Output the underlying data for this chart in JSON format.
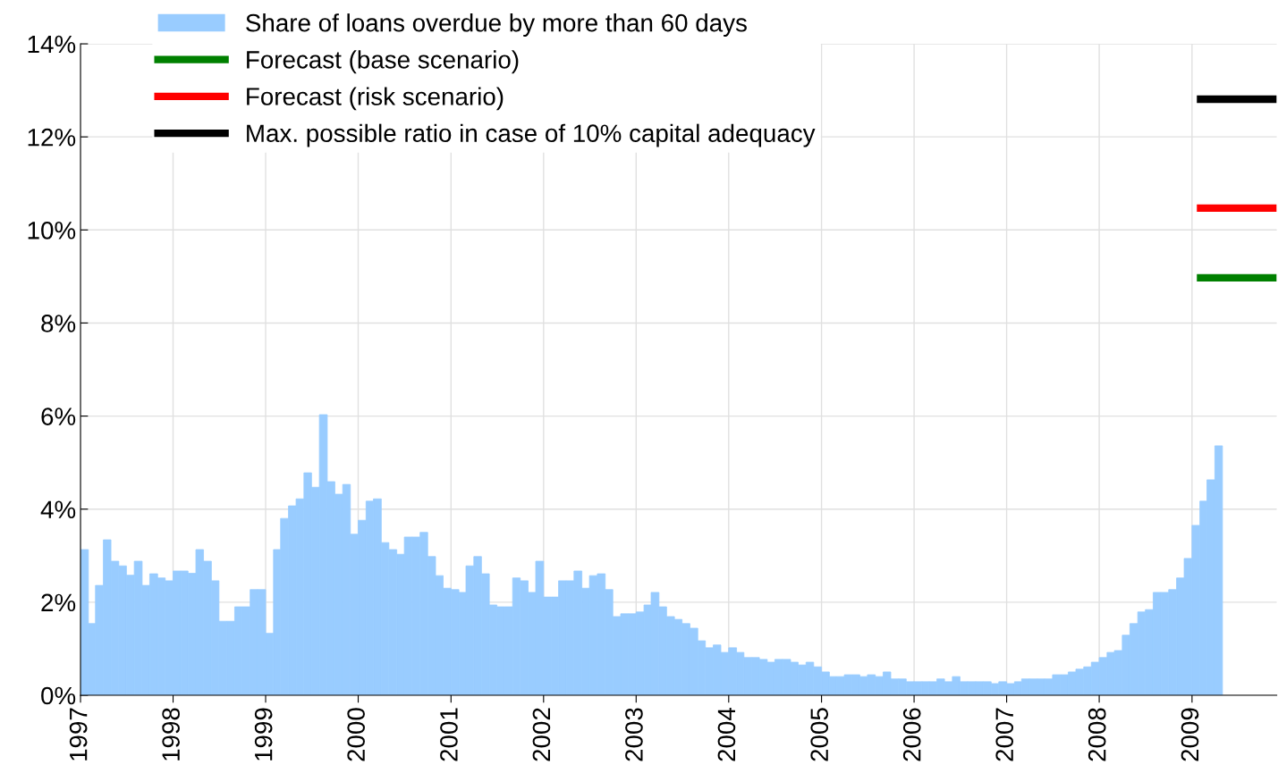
{
  "chart_data": {
    "type": "bar",
    "xlim": [
      "1997-01-01",
      "2009-12-01"
    ],
    "ylim": [
      0,
      14
    ],
    "yticks": [
      {
        "value": 0,
        "label": "0%"
      },
      {
        "value": 2,
        "label": "2%"
      },
      {
        "value": 4,
        "label": "4%"
      },
      {
        "value": 6,
        "label": "6%"
      },
      {
        "value": 8,
        "label": "8%"
      },
      {
        "value": 10,
        "label": "10%"
      },
      {
        "value": 12,
        "label": "12%"
      },
      {
        "value": 14,
        "label": "14%"
      }
    ],
    "xticks": [
      {
        "value": "1997-01-01",
        "label": "1997"
      },
      {
        "value": "1998-01-01",
        "label": "1998"
      },
      {
        "value": "1999-01-01",
        "label": "1999"
      },
      {
        "value": "2000-01-01",
        "label": "2000"
      },
      {
        "value": "2001-01-01",
        "label": "2001"
      },
      {
        "value": "2002-01-01",
        "label": "2002"
      },
      {
        "value": "2003-01-01",
        "label": "2003"
      },
      {
        "value": "2004-01-01",
        "label": "2004"
      },
      {
        "value": "2005-01-01",
        "label": "2005"
      },
      {
        "value": "2006-01-01",
        "label": "2006"
      },
      {
        "value": "2007-01-01",
        "label": "2007"
      },
      {
        "value": "2008-01-01",
        "label": "2008"
      },
      {
        "value": "2009-01-01",
        "label": "2009"
      }
    ],
    "grid": true,
    "legend": "top left",
    "series": [
      {
        "name": "Share of loans overdue by more than 60 days",
        "color": "#99ccff",
        "x": [
          "1997-01",
          "1997-02",
          "1997-03",
          "1997-04",
          "1997-05",
          "1997-06",
          "1997-07",
          "1997-08",
          "1997-09",
          "1997-10",
          "1997-11",
          "1997-12",
          "1998-01",
          "1998-02",
          "1998-03",
          "1998-04",
          "1998-05",
          "1998-06",
          "1998-07",
          "1998-08",
          "1998-09",
          "1998-10",
          "1998-11",
          "1998-12",
          "1999-01",
          "1999-02",
          "1999-03",
          "1999-04",
          "1999-05",
          "1999-06",
          "1999-07",
          "1999-08",
          "1999-09",
          "1999-10",
          "1999-11",
          "1999-12",
          "2000-01",
          "2000-02",
          "2000-03",
          "2000-04",
          "2000-05",
          "2000-06",
          "2000-07",
          "2000-08",
          "2000-09",
          "2000-10",
          "2000-11",
          "2000-12",
          "2001-01",
          "2001-02",
          "2001-03",
          "2001-04",
          "2001-05",
          "2001-06",
          "2001-07",
          "2001-08",
          "2001-09",
          "2001-10",
          "2001-11",
          "2001-12",
          "2002-01",
          "2002-02",
          "2002-03",
          "2002-04",
          "2002-05",
          "2002-06",
          "2002-07",
          "2002-08",
          "2002-09",
          "2002-10",
          "2002-11",
          "2002-12",
          "2003-01",
          "2003-02",
          "2003-03",
          "2003-04",
          "2003-05",
          "2003-06",
          "2003-07",
          "2003-08",
          "2003-09",
          "2003-10",
          "2003-11",
          "2003-12",
          "2004-01",
          "2004-02",
          "2004-03",
          "2004-04",
          "2004-05",
          "2004-06",
          "2004-07",
          "2004-08",
          "2004-09",
          "2004-10",
          "2004-11",
          "2004-12",
          "2005-01",
          "2005-02",
          "2005-03",
          "2005-04",
          "2005-05",
          "2005-06",
          "2005-07",
          "2005-08",
          "2005-09",
          "2005-10",
          "2005-11",
          "2005-12",
          "2006-01",
          "2006-02",
          "2006-03",
          "2006-04",
          "2006-05",
          "2006-06",
          "2006-07",
          "2006-08",
          "2006-09",
          "2006-10",
          "2006-11",
          "2006-12",
          "2007-01",
          "2007-02",
          "2007-03",
          "2007-04",
          "2007-05",
          "2007-06",
          "2007-07",
          "2007-08",
          "2007-09",
          "2007-10",
          "2007-11",
          "2007-12",
          "2008-01",
          "2008-02",
          "2008-03",
          "2008-04",
          "2008-05",
          "2008-06",
          "2008-07",
          "2008-08",
          "2008-09",
          "2008-10",
          "2008-11",
          "2008-12",
          "2009-01",
          "2009-02",
          "2009-03",
          "2009-04"
        ],
        "values": [
          3.13,
          1.54,
          2.36,
          3.34,
          2.88,
          2.78,
          2.58,
          2.88,
          2.36,
          2.61,
          2.52,
          2.46,
          2.67,
          2.67,
          2.62,
          3.13,
          2.88,
          2.46,
          1.59,
          1.59,
          1.9,
          1.9,
          2.27,
          2.27,
          1.33,
          3.13,
          3.8,
          4.07,
          4.22,
          4.78,
          4.47,
          6.03,
          4.59,
          4.32,
          4.53,
          3.46,
          3.76,
          4.17,
          4.22,
          3.28,
          3.13,
          3.03,
          3.4,
          3.4,
          3.5,
          2.98,
          2.57,
          2.3,
          2.27,
          2.21,
          2.78,
          2.98,
          2.61,
          1.94,
          1.9,
          1.9,
          2.52,
          2.46,
          2.21,
          2.88,
          2.11,
          2.11,
          2.46,
          2.46,
          2.67,
          2.3,
          2.57,
          2.61,
          2.27,
          1.69,
          1.75,
          1.75,
          1.79,
          1.94,
          2.21,
          1.9,
          1.69,
          1.63,
          1.54,
          1.44,
          1.17,
          1.02,
          1.08,
          0.92,
          1.02,
          0.92,
          0.81,
          0.81,
          0.77,
          0.71,
          0.77,
          0.77,
          0.71,
          0.65,
          0.71,
          0.61,
          0.5,
          0.4,
          0.4,
          0.44,
          0.44,
          0.4,
          0.44,
          0.4,
          0.5,
          0.35,
          0.35,
          0.29,
          0.29,
          0.29,
          0.29,
          0.35,
          0.29,
          0.4,
          0.29,
          0.29,
          0.29,
          0.29,
          0.25,
          0.29,
          0.25,
          0.29,
          0.35,
          0.35,
          0.35,
          0.35,
          0.44,
          0.44,
          0.5,
          0.56,
          0.61,
          0.71,
          0.81,
          0.92,
          0.96,
          1.29,
          1.54,
          1.79,
          1.84,
          2.21,
          2.21,
          2.27,
          2.52,
          2.94,
          3.65,
          4.17,
          4.63,
          5.36
        ]
      },
      {
        "name": "Forecast (base scenario)",
        "type": "line",
        "color": "#008000",
        "x": [
          "2009-01-20",
          "2009-12-01"
        ],
        "values": [
          8.97,
          8.97
        ]
      },
      {
        "name": "Forecast (risk scenario)",
        "type": "line",
        "color": "#ff0000",
        "x": [
          "2009-01-20",
          "2009-12-01"
        ],
        "values": [
          10.47,
          10.47
        ]
      },
      {
        "name": "Max. possible ratio in case of 10% capital adequacy",
        "type": "line",
        "color": "#000000",
        "x": [
          "2009-01-20",
          "2009-12-01"
        ],
        "values": [
          12.81,
          12.81
        ]
      }
    ]
  }
}
